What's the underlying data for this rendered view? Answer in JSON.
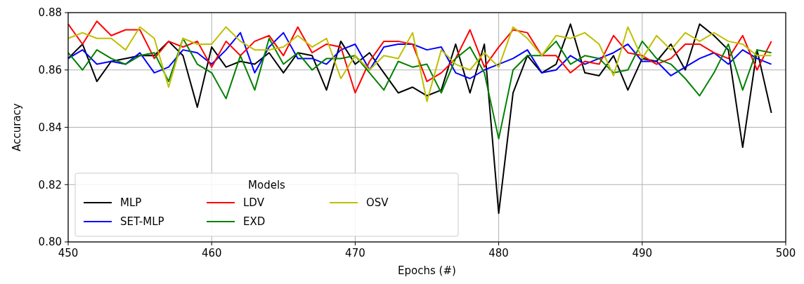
{
  "chart_data": {
    "type": "line",
    "xlabel": "Epochs (#)",
    "ylabel": "Accuracy",
    "legend_title": "Models",
    "legend": "bottom left",
    "grid": true,
    "line_style": "solid",
    "x": [
      450,
      451,
      452,
      453,
      454,
      455,
      456,
      457,
      458,
      459,
      460,
      461,
      462,
      463,
      464,
      465,
      466,
      467,
      468,
      469,
      470,
      471,
      472,
      473,
      474,
      475,
      476,
      477,
      478,
      479,
      480,
      481,
      482,
      483,
      484,
      485,
      486,
      487,
      488,
      489,
      490,
      491,
      492,
      493,
      494,
      495,
      496,
      497,
      498,
      499
    ],
    "xlim": [
      450,
      500
    ],
    "xticks": [
      450,
      460,
      470,
      480,
      490,
      500
    ],
    "ylim": [
      0.8,
      0.88
    ],
    "yticks": [
      {
        "value": 0.8,
        "label": "0.80"
      },
      {
        "value": 0.82,
        "label": "0.82"
      },
      {
        "value": 0.84,
        "label": "0.84"
      },
      {
        "value": 0.86,
        "label": "0.86"
      },
      {
        "value": 0.88,
        "label": "0.88"
      }
    ],
    "series": [
      {
        "name": "MLP",
        "color": "#000000",
        "values": [
          0.864,
          0.869,
          0.856,
          0.863,
          0.864,
          0.865,
          0.865,
          0.87,
          0.865,
          0.847,
          0.868,
          0.861,
          0.863,
          0.862,
          0.866,
          0.859,
          0.866,
          0.865,
          0.853,
          0.87,
          0.862,
          0.866,
          0.859,
          0.852,
          0.854,
          0.851,
          0.853,
          0.869,
          0.852,
          0.869,
          0.81,
          0.852,
          0.865,
          0.859,
          0.862,
          0.876,
          0.859,
          0.858,
          0.865,
          0.853,
          0.864,
          0.863,
          0.869,
          0.86,
          0.876,
          0.872,
          0.867,
          0.833,
          0.867,
          0.845
        ]
      },
      {
        "name": "SET-MLP",
        "color": "#0000ff",
        "values": [
          0.864,
          0.867,
          0.862,
          0.863,
          0.862,
          0.866,
          0.859,
          0.861,
          0.867,
          0.866,
          0.862,
          0.867,
          0.873,
          0.859,
          0.868,
          0.873,
          0.864,
          0.864,
          0.862,
          0.867,
          0.869,
          0.86,
          0.868,
          0.869,
          0.869,
          0.867,
          0.868,
          0.859,
          0.857,
          0.86,
          0.862,
          0.864,
          0.867,
          0.859,
          0.86,
          0.865,
          0.862,
          0.864,
          0.866,
          0.869,
          0.863,
          0.863,
          0.858,
          0.861,
          0.864,
          0.866,
          0.862,
          0.867,
          0.864,
          0.862
        ]
      },
      {
        "name": "LDV",
        "color": "#ff0000",
        "values": [
          0.876,
          0.869,
          0.877,
          0.872,
          0.874,
          0.874,
          0.864,
          0.87,
          0.868,
          0.87,
          0.861,
          0.87,
          0.865,
          0.87,
          0.872,
          0.865,
          0.875,
          0.866,
          0.869,
          0.868,
          0.852,
          0.863,
          0.87,
          0.87,
          0.869,
          0.856,
          0.859,
          0.864,
          0.874,
          0.861,
          0.868,
          0.874,
          0.873,
          0.865,
          0.865,
          0.859,
          0.863,
          0.862,
          0.872,
          0.866,
          0.865,
          0.862,
          0.864,
          0.869,
          0.869,
          0.866,
          0.864,
          0.872,
          0.86,
          0.87
        ]
      },
      {
        "name": "EXD",
        "color": "#008000",
        "values": [
          0.866,
          0.86,
          0.867,
          0.864,
          0.862,
          0.865,
          0.866,
          0.856,
          0.871,
          0.862,
          0.859,
          0.85,
          0.865,
          0.853,
          0.871,
          0.862,
          0.866,
          0.86,
          0.864,
          0.864,
          0.865,
          0.859,
          0.853,
          0.863,
          0.861,
          0.862,
          0.852,
          0.864,
          0.868,
          0.859,
          0.836,
          0.86,
          0.865,
          0.865,
          0.87,
          0.862,
          0.865,
          0.864,
          0.859,
          0.86,
          0.87,
          0.864,
          0.862,
          0.857,
          0.851,
          0.859,
          0.869,
          0.853,
          0.867,
          0.866
        ]
      },
      {
        "name": "OSV",
        "color": "#bfbf00",
        "values": [
          0.871,
          0.873,
          0.871,
          0.871,
          0.867,
          0.875,
          0.871,
          0.854,
          0.871,
          0.869,
          0.869,
          0.875,
          0.87,
          0.867,
          0.867,
          0.868,
          0.872,
          0.868,
          0.871,
          0.857,
          0.865,
          0.86,
          0.865,
          0.864,
          0.873,
          0.849,
          0.867,
          0.862,
          0.86,
          0.866,
          0.861,
          0.875,
          0.871,
          0.865,
          0.872,
          0.871,
          0.873,
          0.869,
          0.858,
          0.875,
          0.864,
          0.872,
          0.867,
          0.873,
          0.87,
          0.873,
          0.87,
          0.869,
          0.865,
          0.865
        ]
      }
    ]
  }
}
